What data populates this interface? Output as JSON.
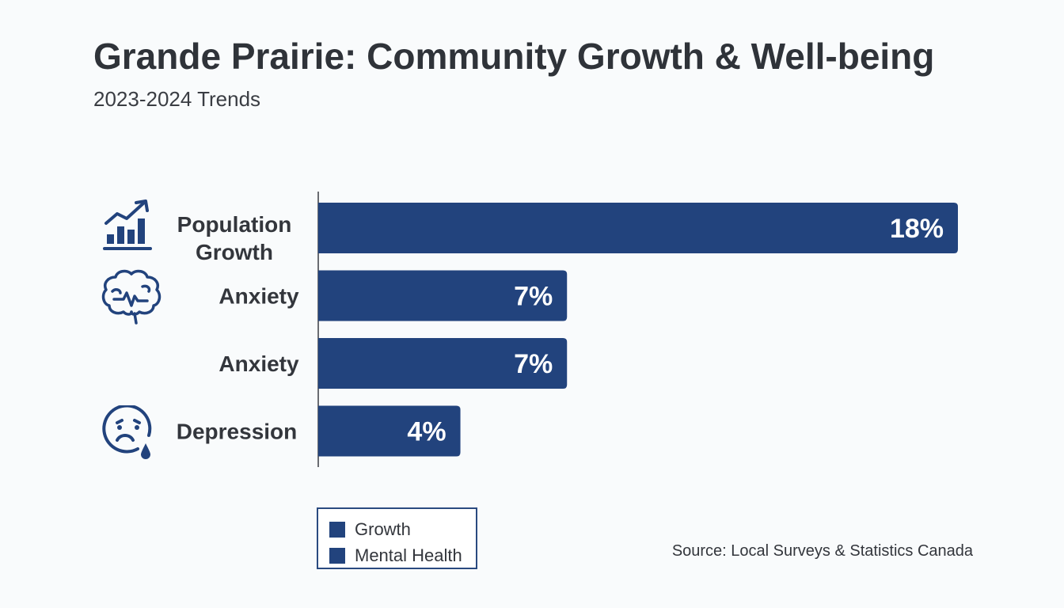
{
  "chart_data": {
    "type": "bar",
    "orientation": "horizontal",
    "title": "Grande Prairie: Community Growth & Well-being",
    "subtitle": "2023-2024 Trends",
    "categories": [
      "Population Growth",
      "Anxiety",
      "Anxiety",
      "Depression"
    ],
    "values": [
      18,
      7,
      7,
      4
    ],
    "value_labels": [
      "18%",
      "7%",
      "7%",
      "4%"
    ],
    "bar_color": "#22437d",
    "legend": {
      "placement": "bottom",
      "entries": [
        {
          "label": "Growth",
          "color": "#22437d"
        },
        {
          "label": "Mental Health",
          "color": "#22437d"
        }
      ]
    },
    "grid": false,
    "source": "Source: Local Surveys & Statistics Canada"
  },
  "icons": {
    "accent_color": "#22437d",
    "population": "chart-growth-icon",
    "anxiety": "brain-icon",
    "depression": "sad-face-tear-icon"
  }
}
